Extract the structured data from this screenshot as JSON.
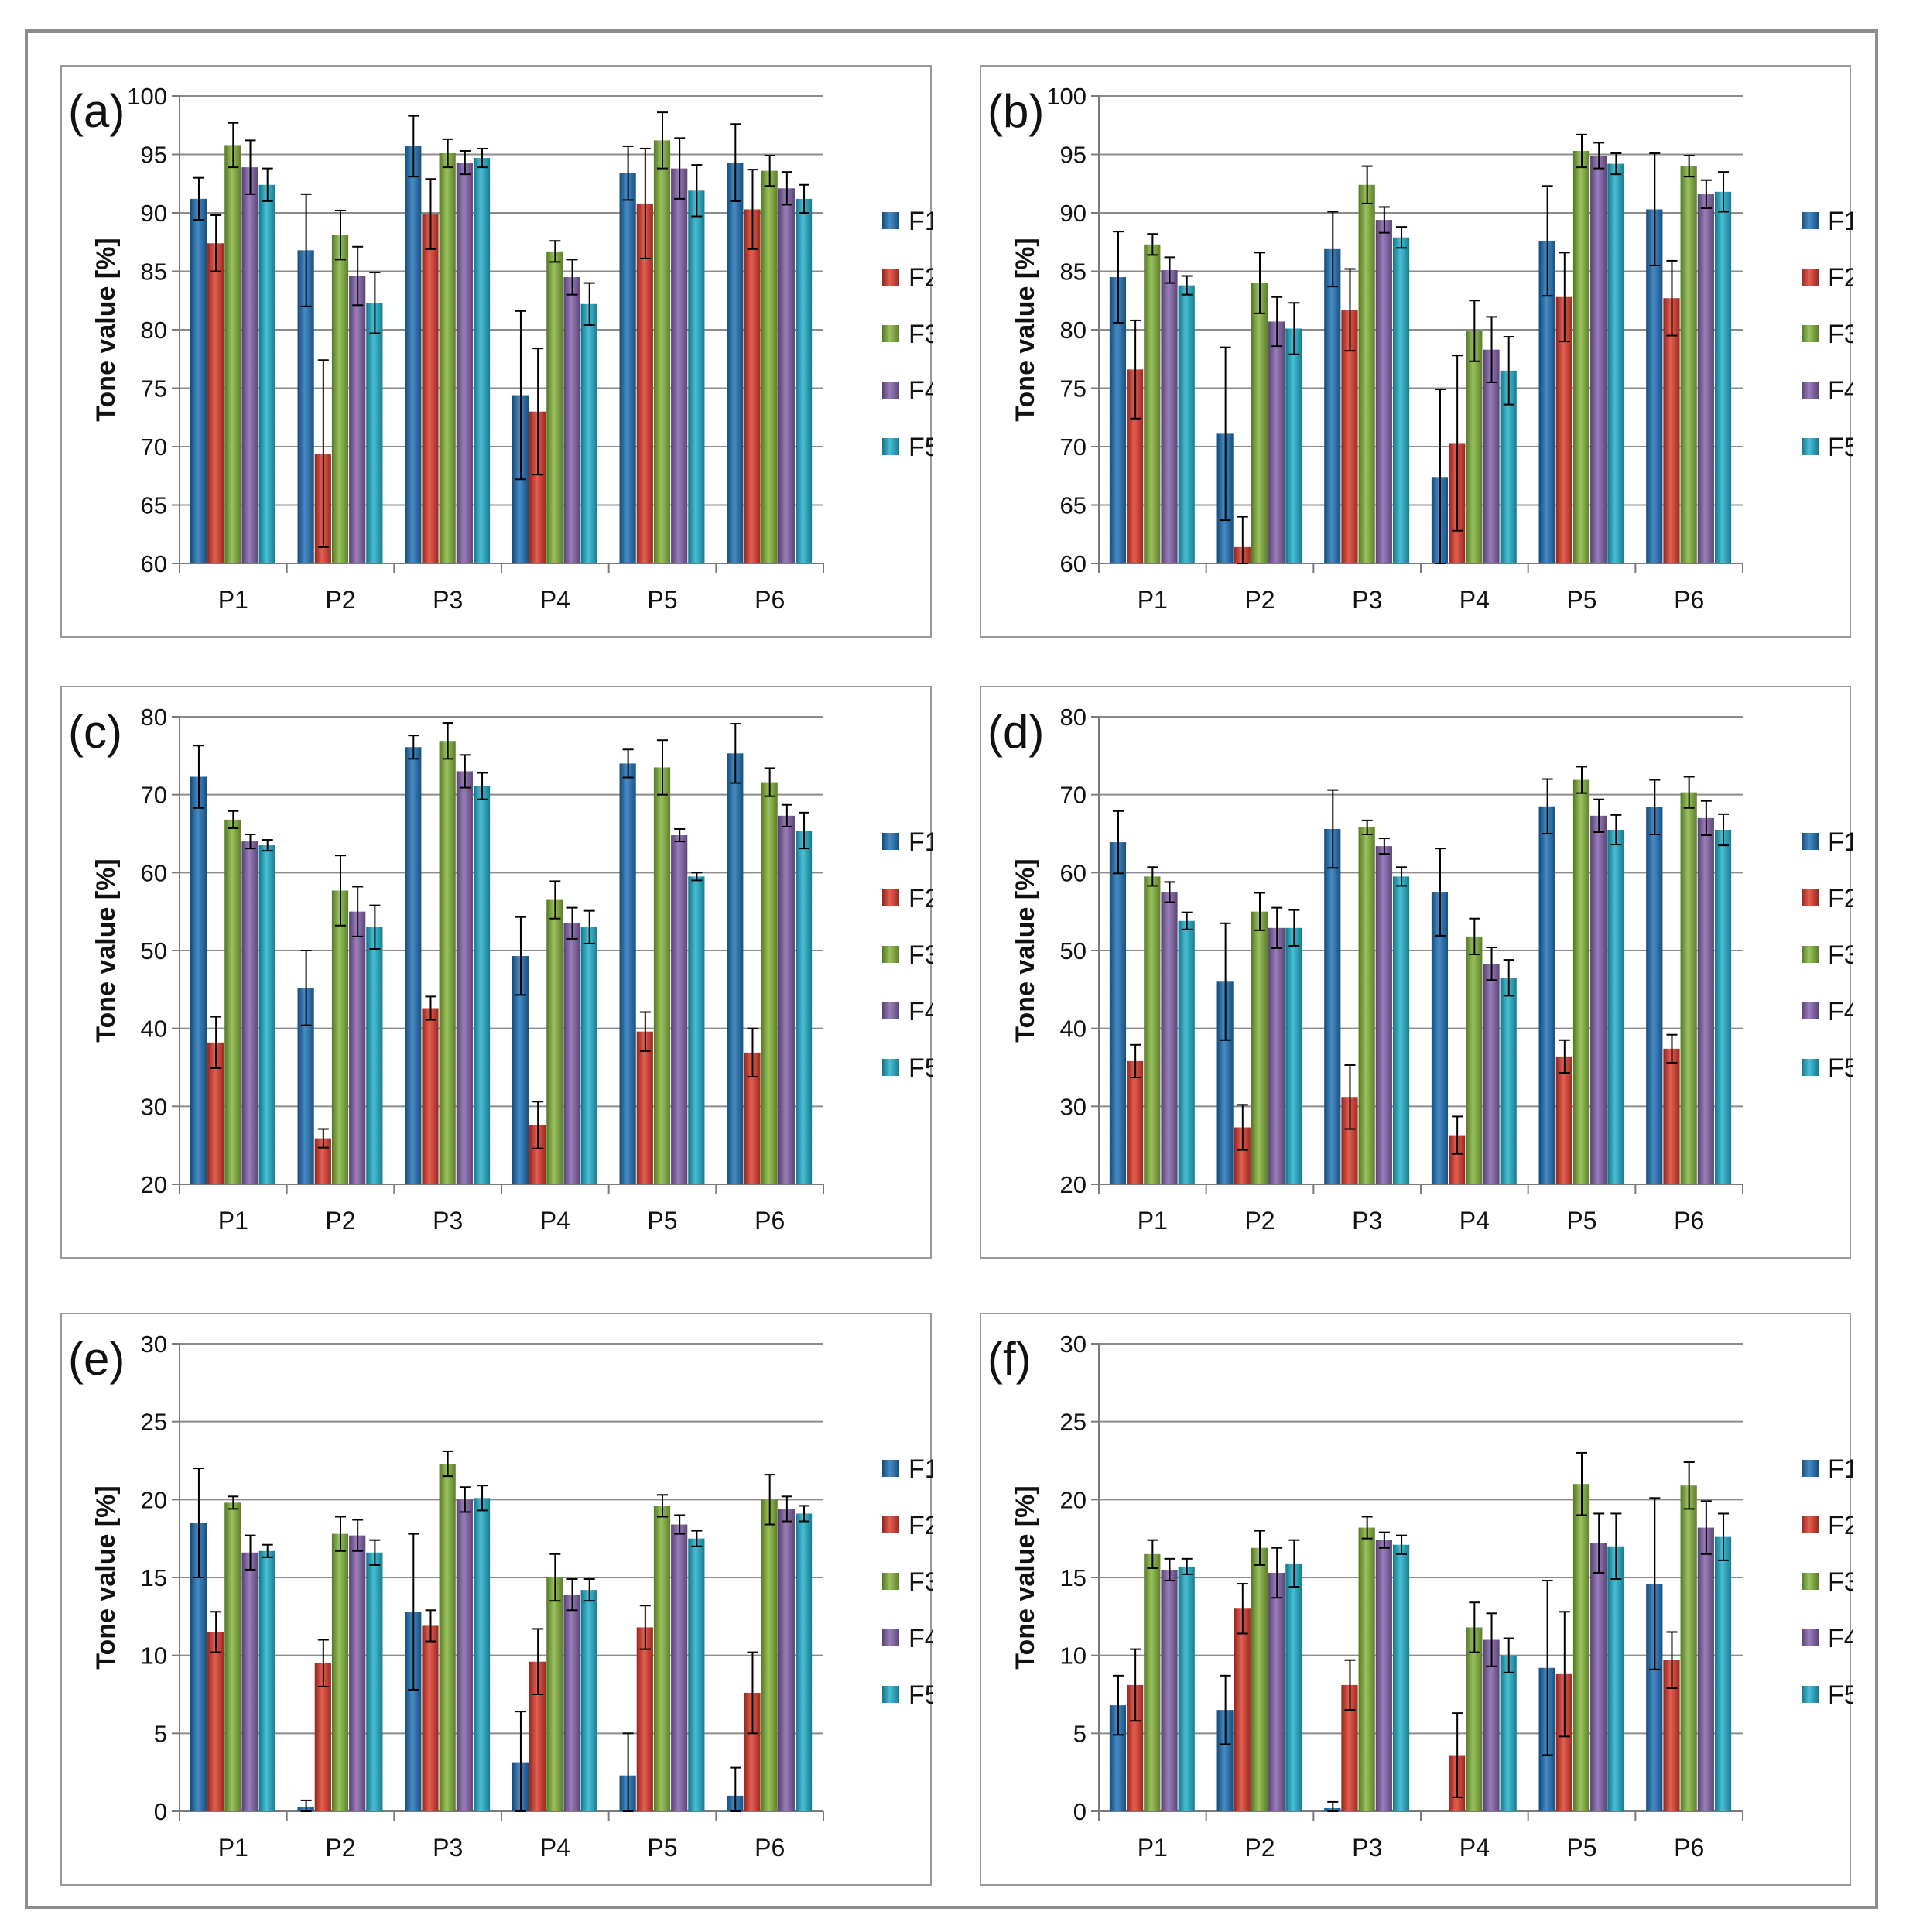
{
  "chart_data": [
    {
      "type": "bar",
      "panel": "(a)",
      "ylabel": "Tone value [%]",
      "ylim": [
        60,
        100
      ],
      "ytick_step": 5,
      "categories": [
        "P1",
        "P2",
        "P3",
        "P4",
        "P5",
        "P6"
      ],
      "series": [
        {
          "name": "F1",
          "values": [
            91.2,
            86.8,
            95.7,
            74.4,
            93.4,
            94.3
          ],
          "errors": [
            1.8,
            4.8,
            2.6,
            7.2,
            2.3,
            3.3
          ]
        },
        {
          "name": "F2",
          "values": [
            87.4,
            69.4,
            89.9,
            73.0,
            90.8,
            90.3
          ],
          "errors": [
            2.4,
            8.0,
            3.0,
            5.4,
            4.7,
            3.4
          ]
        },
        {
          "name": "F3",
          "values": [
            95.8,
            88.1,
            95.1,
            86.7,
            96.2,
            93.6
          ],
          "errors": [
            1.9,
            2.1,
            1.2,
            0.9,
            2.4,
            1.3
          ]
        },
        {
          "name": "F4",
          "values": [
            93.9,
            84.6,
            94.3,
            84.5,
            93.8,
            92.1
          ],
          "errors": [
            2.3,
            2.5,
            1.0,
            1.5,
            2.6,
            1.4
          ]
        },
        {
          "name": "F5",
          "values": [
            92.4,
            82.3,
            94.7,
            82.2,
            91.9,
            91.2
          ],
          "errors": [
            1.4,
            2.6,
            0.8,
            1.8,
            2.2,
            1.2
          ]
        }
      ]
    },
    {
      "type": "bar",
      "panel": "(b)",
      "ylabel": "Tone value [%]",
      "ylim": [
        60,
        100
      ],
      "ytick_step": 5,
      "categories": [
        "P1",
        "P2",
        "P3",
        "P4",
        "P5",
        "P6"
      ],
      "series": [
        {
          "name": "F1",
          "values": [
            84.5,
            71.1,
            86.9,
            67.4,
            87.6,
            90.3
          ],
          "errors": [
            3.9,
            7.4,
            3.2,
            7.5,
            4.7,
            4.8
          ]
        },
        {
          "name": "F2",
          "values": [
            76.6,
            61.4,
            81.7,
            70.3,
            82.8,
            82.7
          ],
          "errors": [
            4.2,
            2.6,
            3.5,
            7.5,
            3.8,
            3.2
          ]
        },
        {
          "name": "F3",
          "values": [
            87.3,
            84.0,
            92.4,
            79.9,
            95.3,
            94.0
          ],
          "errors": [
            0.9,
            2.6,
            1.6,
            2.6,
            1.4,
            0.9
          ]
        },
        {
          "name": "F4",
          "values": [
            85.1,
            80.7,
            89.4,
            78.3,
            94.9,
            91.6
          ],
          "errors": [
            1.1,
            2.1,
            1.1,
            2.8,
            1.1,
            1.2
          ]
        },
        {
          "name": "F5",
          "values": [
            83.8,
            80.1,
            87.9,
            76.5,
            94.2,
            91.8
          ],
          "errors": [
            0.8,
            2.2,
            0.9,
            2.9,
            0.9,
            1.7
          ]
        }
      ]
    },
    {
      "type": "bar",
      "panel": "(c)",
      "ylabel": "Tone value [%]",
      "ylim": [
        20,
        80
      ],
      "ytick_step": 10,
      "categories": [
        "P1",
        "P2",
        "P3",
        "P4",
        "P5",
        "P6"
      ],
      "series": [
        {
          "name": "F1",
          "values": [
            72.3,
            45.2,
            76.1,
            49.3,
            74.0,
            75.3
          ],
          "errors": [
            4.0,
            4.8,
            1.5,
            5.0,
            1.8,
            3.8
          ]
        },
        {
          "name": "F2",
          "values": [
            38.2,
            25.9,
            42.6,
            27.6,
            39.6,
            36.9
          ],
          "errors": [
            3.3,
            1.2,
            1.5,
            3.0,
            2.5,
            3.1
          ]
        },
        {
          "name": "F3",
          "values": [
            66.8,
            57.7,
            76.9,
            56.5,
            73.5,
            71.6
          ],
          "errors": [
            1.1,
            4.5,
            2.3,
            2.4,
            3.5,
            1.8
          ]
        },
        {
          "name": "F4",
          "values": [
            64.0,
            55.0,
            73.0,
            53.5,
            64.8,
            67.3
          ],
          "errors": [
            0.9,
            3.2,
            2.1,
            2.0,
            0.8,
            1.4
          ]
        },
        {
          "name": "F5",
          "values": [
            63.5,
            53.0,
            71.1,
            53.0,
            59.5,
            65.4
          ],
          "errors": [
            0.7,
            2.8,
            1.7,
            2.1,
            0.5,
            2.3
          ]
        }
      ]
    },
    {
      "type": "bar",
      "panel": "(d)",
      "ylabel": "Tone value [%]",
      "ylim": [
        20,
        80
      ],
      "ytick_step": 10,
      "categories": [
        "P1",
        "P2",
        "P3",
        "P4",
        "P5",
        "P6"
      ],
      "series": [
        {
          "name": "F1",
          "values": [
            63.9,
            46.0,
            65.6,
            57.5,
            68.5,
            68.4
          ],
          "errors": [
            4.0,
            7.5,
            5.0,
            5.6,
            3.5,
            3.5
          ]
        },
        {
          "name": "F2",
          "values": [
            35.8,
            27.3,
            31.2,
            26.3,
            36.4,
            37.4
          ],
          "errors": [
            2.1,
            2.9,
            4.1,
            2.4,
            2.1,
            1.8
          ]
        },
        {
          "name": "F3",
          "values": [
            59.5,
            55.0,
            65.8,
            51.8,
            71.9,
            70.3
          ],
          "errors": [
            1.2,
            2.4,
            0.9,
            2.3,
            1.7,
            2.0
          ]
        },
        {
          "name": "F4",
          "values": [
            57.5,
            52.9,
            63.4,
            48.3,
            67.3,
            67.0
          ],
          "errors": [
            1.3,
            2.6,
            1.0,
            2.1,
            2.1,
            2.2
          ]
        },
        {
          "name": "F5",
          "values": [
            53.8,
            52.9,
            59.5,
            46.5,
            65.5,
            65.5
          ],
          "errors": [
            1.1,
            2.3,
            1.2,
            2.3,
            1.9,
            2.0
          ]
        }
      ]
    },
    {
      "type": "bar",
      "panel": "(e)",
      "ylabel": "Tone value [%]",
      "ylim": [
        0,
        30
      ],
      "ytick_step": 5,
      "categories": [
        "P1",
        "P2",
        "P3",
        "P4",
        "P5",
        "P6"
      ],
      "series": [
        {
          "name": "F1",
          "values": [
            18.5,
            0.3,
            12.8,
            3.1,
            2.3,
            1.0
          ],
          "errors": [
            3.5,
            0.4,
            5.0,
            3.3,
            2.7,
            1.8
          ]
        },
        {
          "name": "F2",
          "values": [
            11.5,
            9.5,
            11.9,
            9.6,
            11.8,
            7.6
          ],
          "errors": [
            1.3,
            1.5,
            1.0,
            2.1,
            1.4,
            2.6
          ]
        },
        {
          "name": "F3",
          "values": [
            19.8,
            17.8,
            22.3,
            15.0,
            19.6,
            20.0
          ],
          "errors": [
            0.4,
            1.1,
            0.8,
            1.5,
            0.7,
            1.6
          ]
        },
        {
          "name": "F4",
          "values": [
            16.6,
            17.7,
            20.0,
            13.9,
            18.4,
            19.4
          ],
          "errors": [
            1.1,
            1.0,
            0.8,
            1.0,
            0.6,
            0.8
          ]
        },
        {
          "name": "F5",
          "values": [
            16.7,
            16.6,
            20.1,
            14.2,
            17.5,
            19.1
          ],
          "errors": [
            0.4,
            0.8,
            0.8,
            0.7,
            0.5,
            0.5
          ]
        }
      ]
    },
    {
      "type": "bar",
      "panel": "(f)",
      "ylabel": "Tone value [%]",
      "ylim": [
        0,
        30
      ],
      "ytick_step": 5,
      "categories": [
        "P1",
        "P2",
        "P3",
        "P4",
        "P5",
        "P6"
      ],
      "series": [
        {
          "name": "F1",
          "values": [
            6.8,
            6.5,
            0.2,
            0.0,
            9.2,
            14.6
          ],
          "errors": [
            1.9,
            2.2,
            0.4,
            0.0,
            5.6,
            5.5
          ]
        },
        {
          "name": "F2",
          "values": [
            8.1,
            13.0,
            8.1,
            3.6,
            8.8,
            9.7
          ],
          "errors": [
            2.3,
            1.6,
            1.6,
            2.7,
            4.0,
            1.8
          ]
        },
        {
          "name": "F3",
          "values": [
            16.5,
            16.9,
            18.2,
            11.8,
            21.0,
            20.9
          ],
          "errors": [
            0.9,
            1.1,
            0.7,
            1.6,
            2.0,
            1.5
          ]
        },
        {
          "name": "F4",
          "values": [
            15.5,
            15.3,
            17.4,
            11.0,
            17.2,
            18.2
          ],
          "errors": [
            0.7,
            1.6,
            0.5,
            1.7,
            1.9,
            1.7
          ]
        },
        {
          "name": "F5",
          "values": [
            15.7,
            15.9,
            17.1,
            10.0,
            17.0,
            17.6
          ],
          "errors": [
            0.5,
            1.5,
            0.6,
            1.1,
            2.1,
            1.5
          ]
        }
      ]
    }
  ],
  "colors": {
    "F1": "#1f72b8",
    "F2": "#df3b2c",
    "F3": "#84b53a",
    "F4": "#8462ac",
    "F5": "#20b1cc",
    "grid": "#8c8c8c",
    "axis": "#7a7a7a",
    "error_bar": "#000000",
    "frame": "#8c8c8c"
  }
}
